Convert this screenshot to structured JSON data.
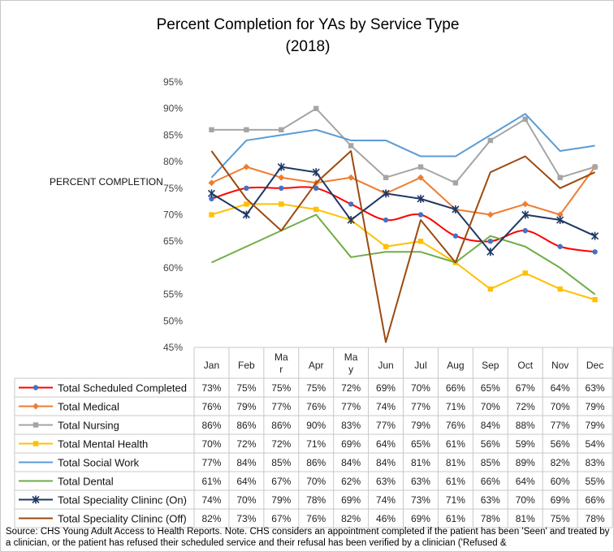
{
  "chart_data": {
    "type": "line",
    "title_line1": "Percent Completion for YAs by Service Type",
    "title_line2": "(2018)",
    "ylabel": "PERCENT COMPLETION",
    "ylim": [
      45,
      95
    ],
    "yticks": [
      "95%",
      "90%",
      "85%",
      "80%",
      "75%",
      "70%",
      "65%",
      "60%",
      "55%",
      "50%",
      "45%"
    ],
    "ytick_values": [
      95,
      90,
      85,
      80,
      75,
      70,
      65,
      60,
      55,
      50,
      45
    ],
    "categories": [
      "Jan",
      "Feb",
      "Mar",
      "Apr",
      "May",
      "Jun",
      "Jul",
      "Aug",
      "Sep",
      "Oct",
      "Nov",
      "Dec"
    ],
    "category_label_lines": [
      [
        "Jan"
      ],
      [
        "Feb"
      ],
      [
        "Ma",
        "r"
      ],
      [
        "Apr"
      ],
      [
        "Ma",
        "y"
      ],
      [
        "Jun"
      ],
      [
        "Jul"
      ],
      [
        "Aug"
      ],
      [
        "Sep"
      ],
      [
        "Oct"
      ],
      [
        "Nov"
      ],
      [
        "Dec"
      ]
    ],
    "series": [
      {
        "name": "Total Scheduled Completed",
        "color": "#ff0000",
        "marker": "circle",
        "marker_color": "#4472c4",
        "smooth": true,
        "values": [
          73,
          75,
          75,
          75,
          72,
          69,
          70,
          66,
          65,
          67,
          64,
          63
        ],
        "labels": [
          "73%",
          "75%",
          "75%",
          "75%",
          "72%",
          "69%",
          "70%",
          "66%",
          "65%",
          "67%",
          "64%",
          "63%"
        ]
      },
      {
        "name": "Total Medical",
        "color": "#ed7d31",
        "marker": "diamond",
        "marker_color": "#ed7d31",
        "smooth": false,
        "values": [
          76,
          79,
          77,
          76,
          77,
          74,
          77,
          71,
          70,
          72,
          70,
          79
        ],
        "labels": [
          "76%",
          "79%",
          "77%",
          "76%",
          "77%",
          "74%",
          "77%",
          "71%",
          "70%",
          "72%",
          "70%",
          "79%"
        ]
      },
      {
        "name": "Total Nursing",
        "color": "#a5a5a5",
        "marker": "square",
        "marker_color": "#a5a5a5",
        "smooth": false,
        "values": [
          86,
          86,
          86,
          90,
          83,
          77,
          79,
          76,
          84,
          88,
          77,
          79
        ],
        "labels": [
          "86%",
          "86%",
          "86%",
          "90%",
          "83%",
          "77%",
          "79%",
          "76%",
          "84%",
          "88%",
          "77%",
          "79%"
        ]
      },
      {
        "name": "Total Mental Health",
        "color": "#ffc000",
        "marker": "square",
        "marker_color": "#ffc000",
        "smooth": false,
        "values": [
          70,
          72,
          72,
          71,
          69,
          64,
          65,
          61,
          56,
          59,
          56,
          54
        ],
        "labels": [
          "70%",
          "72%",
          "72%",
          "71%",
          "69%",
          "64%",
          "65%",
          "61%",
          "56%",
          "59%",
          "56%",
          "54%"
        ]
      },
      {
        "name": "Total Social Work",
        "color": "#5b9bd5",
        "marker": "none",
        "marker_color": "#5b9bd5",
        "smooth": false,
        "values": [
          77,
          84,
          85,
          86,
          84,
          84,
          81,
          81,
          85,
          89,
          82,
          83
        ],
        "labels": [
          "77%",
          "84%",
          "85%",
          "86%",
          "84%",
          "84%",
          "81%",
          "81%",
          "85%",
          "89%",
          "82%",
          "83%"
        ]
      },
      {
        "name": "Total Dental",
        "color": "#70ad47",
        "marker": "none",
        "marker_color": "#70ad47",
        "smooth": false,
        "values": [
          61,
          64,
          67,
          70,
          62,
          63,
          63,
          61,
          66,
          64,
          60,
          55
        ],
        "labels": [
          "61%",
          "64%",
          "67%",
          "70%",
          "62%",
          "63%",
          "63%",
          "61%",
          "66%",
          "64%",
          "60%",
          "55%"
        ]
      },
      {
        "name": "Total Speciality Clininc (On)",
        "color": "#1f3864",
        "marker": "star",
        "marker_color": "#1f3864",
        "smooth": false,
        "values": [
          74,
          70,
          79,
          78,
          69,
          74,
          73,
          71,
          63,
          70,
          69,
          66
        ],
        "labels": [
          "74%",
          "70%",
          "79%",
          "78%",
          "69%",
          "74%",
          "73%",
          "71%",
          "63%",
          "70%",
          "69%",
          "66%"
        ]
      },
      {
        "name": "Total Speciality Clininc (Off)",
        "color": "#9c4a0f",
        "marker": "none",
        "marker_color": "#9c4a0f",
        "smooth": false,
        "values": [
          82,
          73,
          67,
          76,
          82,
          46,
          69,
          61,
          78,
          81,
          75,
          78
        ],
        "labels": [
          "82%",
          "73%",
          "67%",
          "76%",
          "82%",
          "46%",
          "69%",
          "61%",
          "78%",
          "81%",
          "75%",
          "78%"
        ]
      }
    ]
  },
  "source_note": "Source: CHS Young Adult Access to Health Reports. Note. CHS considers an appointment completed if the patient has been 'Seen' and treated by a clinician, or the patient has refused their scheduled service and their refusal has been verified by a clinician ('Refused &"
}
